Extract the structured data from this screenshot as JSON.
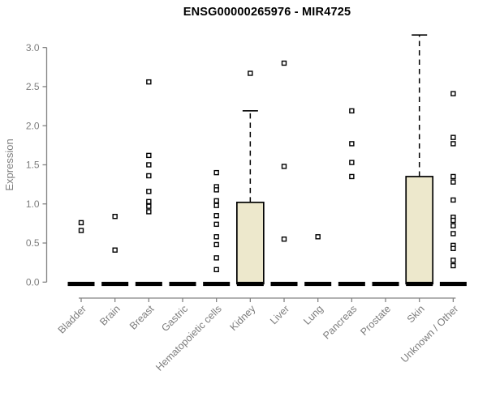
{
  "chart_data": {
    "type": "boxplot",
    "title": "ENSG00000265976 - MIR4725",
    "xlabel": "",
    "ylabel": "Expression",
    "ylim": [
      0,
      3.16
    ],
    "yticks": [
      "0.0",
      "0.5",
      "1.0",
      "1.5",
      "2.0",
      "2.5",
      "3.0"
    ],
    "grid": false,
    "legend": "none",
    "categories": [
      "Bladder",
      "Brain",
      "Breast",
      "Gastric",
      "Hematopoietic cells",
      "Kidney",
      "Liver",
      "Lung",
      "Pancreas",
      "Prostate",
      "Skin",
      "Unknown / Other"
    ],
    "boxes": [
      {
        "category": "Bladder",
        "q1": 0,
        "median": 0,
        "q3": 0,
        "whisker_low": 0,
        "whisker_high": 0,
        "outliers": [
          0.76,
          0.66
        ]
      },
      {
        "category": "Brain",
        "q1": 0,
        "median": 0,
        "q3": 0,
        "whisker_low": 0,
        "whisker_high": 0,
        "outliers": [
          0.84,
          0.41
        ]
      },
      {
        "category": "Breast",
        "q1": 0,
        "median": 0,
        "q3": 0,
        "whisker_low": 0,
        "whisker_high": 0,
        "outliers": [
          2.56,
          1.62,
          1.5,
          1.36,
          1.16,
          1.03,
          0.97,
          0.9
        ]
      },
      {
        "category": "Gastric",
        "q1": 0,
        "median": 0,
        "q3": 0,
        "whisker_low": 0,
        "whisker_high": 0,
        "outliers": []
      },
      {
        "category": "Hematopoietic cells",
        "q1": 0,
        "median": 0,
        "q3": 0,
        "whisker_low": 0,
        "whisker_high": 0,
        "outliers": [
          1.4,
          1.22,
          1.18,
          1.04,
          0.98,
          0.85,
          0.74,
          0.58,
          0.48,
          0.31,
          0.16
        ]
      },
      {
        "category": "Kidney",
        "q1": 0,
        "median": 0,
        "q3": 1.02,
        "whisker_low": 0,
        "whisker_high": 2.19,
        "outliers": [
          2.67
        ]
      },
      {
        "category": "Liver",
        "q1": 0,
        "median": 0,
        "q3": 0,
        "whisker_low": 0,
        "whisker_high": 0,
        "outliers": [
          2.8,
          1.48,
          0.55
        ]
      },
      {
        "category": "Lung",
        "q1": 0,
        "median": 0,
        "q3": 0,
        "whisker_low": 0,
        "whisker_high": 0,
        "outliers": [
          0.58
        ]
      },
      {
        "category": "Pancreas",
        "q1": 0,
        "median": 0,
        "q3": 0,
        "whisker_low": 0,
        "whisker_high": 0,
        "outliers": [
          2.19,
          1.77,
          1.53,
          1.35
        ]
      },
      {
        "category": "Prostate",
        "q1": 0,
        "median": 0,
        "q3": 0,
        "whisker_low": 0,
        "whisker_high": 0,
        "outliers": []
      },
      {
        "category": "Skin",
        "q1": 0,
        "median": 0,
        "q3": 1.35,
        "whisker_low": 0,
        "whisker_high": 3.16,
        "outliers": []
      },
      {
        "category": "Unknown / Other",
        "q1": 0,
        "median": 0,
        "q3": 0,
        "whisker_low": 0,
        "whisker_high": 0,
        "outliers": [
          2.41,
          1.85,
          1.77,
          1.35,
          1.28,
          1.05,
          0.83,
          0.79,
          0.72,
          0.62,
          0.47,
          0.43,
          0.28,
          0.21
        ]
      }
    ],
    "colors": {
      "box_fill": "#EDE8CC",
      "box_stroke": "#000000",
      "median_zero_bar": "#000000",
      "marker_stroke": "#000000",
      "marker_fill": "#ffffff",
      "axis": "#848484",
      "tick_text": "#7d7d7d",
      "title_text": "#000000",
      "background": "#ffffff"
    }
  }
}
